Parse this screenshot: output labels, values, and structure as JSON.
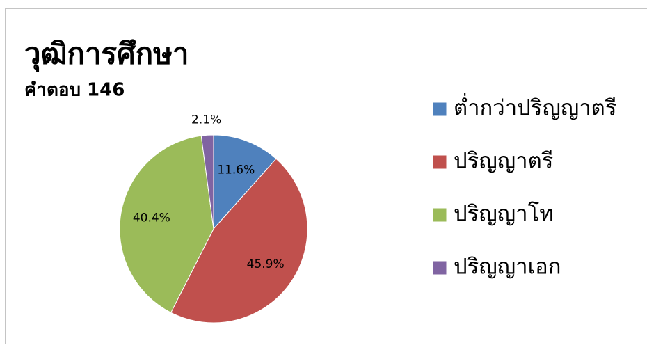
{
  "chart_data": {
    "type": "pie",
    "title": "วุฒิการศึกษา",
    "subtitle": "คำตอบ 146",
    "categories": [
      "ต่ำกว่าปริญญาตรี",
      "ปริญญาตรี",
      "ปริญญาโท",
      "ปริญญาเอก"
    ],
    "values": [
      11.6,
      45.9,
      40.4,
      2.1
    ],
    "value_labels": [
      "11.6%",
      "45.9%",
      "40.4%",
      "2.1%"
    ],
    "colors": [
      "#4f81bd",
      "#c0504d",
      "#9bbb59",
      "#8064a2"
    ],
    "legend": "right"
  }
}
